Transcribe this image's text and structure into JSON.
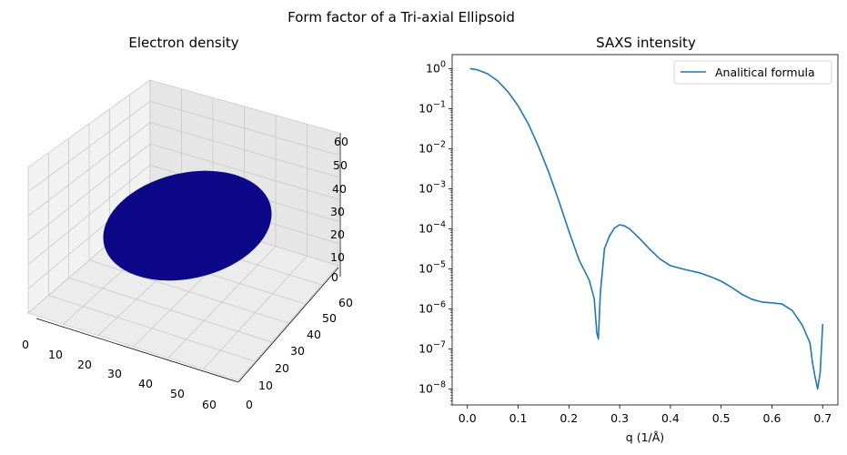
{
  "figure": {
    "suptitle": "Form factor of a Tri-axial Ellipsoid"
  },
  "colors": {
    "series": "#1f77b4",
    "volume": "#0d0887",
    "pane": "#f2f2f2",
    "grid": "#cccccc"
  },
  "chart_data": [
    {
      "type": "3d-surface",
      "title": "Electron density",
      "x_ticks": [
        "0",
        "10",
        "20",
        "30",
        "40",
        "50",
        "60"
      ],
      "y_ticks": [
        "0",
        "10",
        "20",
        "30",
        "40",
        "50",
        "60"
      ],
      "z_ticks": [
        "0",
        "10",
        "20",
        "30",
        "40",
        "50",
        "60"
      ],
      "xlim": [
        0,
        60
      ],
      "ylim": [
        0,
        60
      ],
      "zlim": [
        0,
        60
      ],
      "object": "ellipsoid"
    },
    {
      "type": "line",
      "title": "SAXS intensity",
      "xlabel": "q (1/Å)",
      "yscale": "log",
      "xlim": [
        -0.03,
        0.73
      ],
      "ylim_exp": [
        -8.4,
        0.35
      ],
      "x_ticks": [
        0.0,
        0.1,
        0.2,
        0.3,
        0.4,
        0.5,
        0.6,
        0.7
      ],
      "x_tick_labels": [
        "0.0",
        "0.1",
        "0.2",
        "0.3",
        "0.4",
        "0.5",
        "0.6",
        "0.7"
      ],
      "y_tick_exponents": [
        0,
        -1,
        -2,
        -3,
        -4,
        -5,
        -6,
        -7,
        -8
      ],
      "y_tick_base": "10",
      "y_tick_labels": [
        "0",
        "−1",
        "−2",
        "−3",
        "−4",
        "−5",
        "−6",
        "−7",
        "−8"
      ],
      "legend": {
        "label": "Analitical formula",
        "loc": "upper right"
      },
      "series": [
        {
          "name": "Analitical formula",
          "x": [
            0.005,
            0.02,
            0.04,
            0.06,
            0.08,
            0.1,
            0.12,
            0.14,
            0.16,
            0.18,
            0.2,
            0.22,
            0.24,
            0.25,
            0.255,
            0.258,
            0.262,
            0.27,
            0.28,
            0.29,
            0.3,
            0.31,
            0.32,
            0.34,
            0.36,
            0.38,
            0.4,
            0.42,
            0.44,
            0.46,
            0.48,
            0.5,
            0.52,
            0.54,
            0.56,
            0.58,
            0.6,
            0.62,
            0.64,
            0.66,
            0.675,
            0.68,
            0.685,
            0.69,
            0.695,
            0.7
          ],
          "log10_y": [
            0.0,
            -0.03,
            -0.13,
            -0.31,
            -0.58,
            -0.93,
            -1.38,
            -1.94,
            -2.58,
            -3.3,
            -4.06,
            -4.78,
            -5.28,
            -5.75,
            -6.6,
            -6.75,
            -5.6,
            -4.5,
            -4.18,
            -3.98,
            -3.9,
            -3.93,
            -4.01,
            -4.25,
            -4.52,
            -4.76,
            -4.92,
            -4.99,
            -5.05,
            -5.11,
            -5.2,
            -5.31,
            -5.46,
            -5.63,
            -5.76,
            -5.83,
            -5.85,
            -5.88,
            -6.04,
            -6.41,
            -6.85,
            -7.35,
            -7.7,
            -8.0,
            -7.6,
            -6.38
          ]
        }
      ]
    }
  ]
}
